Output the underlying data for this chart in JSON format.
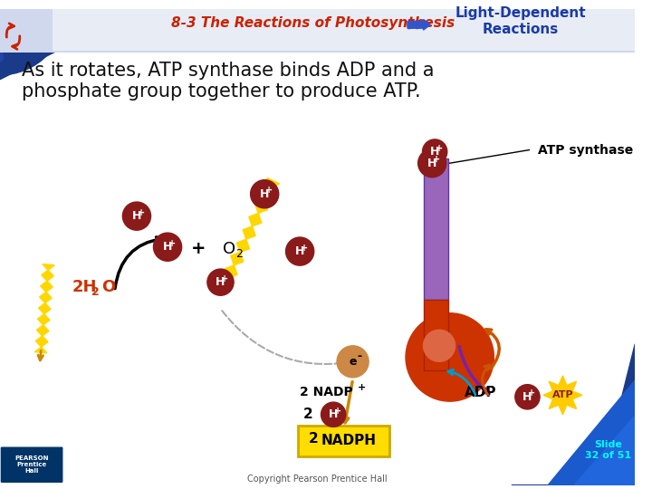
{
  "title_left": "8-3 The Reactions of Photosynthesis",
  "title_right": "Light-Dependent\nReactions",
  "subtitle": "As it rotates, ATP synthase binds ADP and a\nphosphate group together to produce ATP.",
  "slide_text": "Slide\n32 of 51",
  "copyright": "Copyright Pearson Prentice Hall",
  "background_color": "#ffffff",
  "header_bg": "#1a3a7a",
  "title_color": "#cc2200",
  "title_right_color": "#1a3aaa",
  "subtitle_color": "#111111",
  "blue_corner_color": "#2244aa",
  "h_plus_bg": "#8b1a1a",
  "h_plus_text": "#ffffff",
  "lightning_color": "#ffd700",
  "lightning_dark": "#cc8800",
  "arrow_color": "#cc8800",
  "atp_synthase_tube_color1": "#9966aa",
  "atp_synthase_tube_color2": "#cc3300",
  "atp_synthase_ball_color": "#cc3300",
  "adp_color": "#111111",
  "nadph_bg": "#ffdd00",
  "nadph_text": "#000000",
  "electron_color": "#cc8844",
  "electron_text": "#000000",
  "rotate_arrow_color": "#cc5500",
  "blue_arrow_color": "#00aacc",
  "purple_arrow_color": "#7722aa",
  "atp_star_color": "#ffcc00",
  "atp_star_text": "#8b1a1a",
  "water_color": "#cc3300",
  "slide_text_color": "#00ffff",
  "pearson_bg": "#003366"
}
